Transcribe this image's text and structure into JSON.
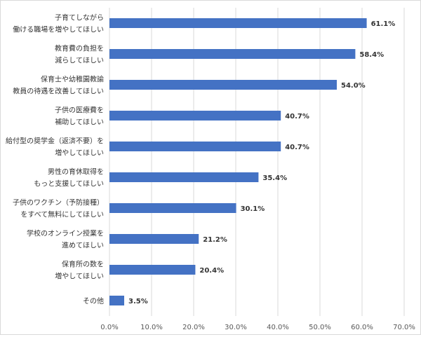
{
  "chart_data": {
    "type": "bar",
    "orientation": "horizontal",
    "categories": [
      [
        "子育てしながら",
        "働ける職場を増やしてほしい"
      ],
      [
        "教育費の負担を",
        "減らしてほしい"
      ],
      [
        "保育士や幼稚園教諭",
        "教員の待遇を改善してほしい"
      ],
      [
        "子供の医療費を",
        "補助してほしい"
      ],
      [
        "給付型の奨学金（返済不要）を",
        "増やしてほしい"
      ],
      [
        "男性の育休取得を",
        "もっと支援してほしい"
      ],
      [
        "子供のワクチン（予防接種）",
        "をすべて無料にしてほしい"
      ],
      [
        "学校のオンライン授業を",
        "進めてほしい"
      ],
      [
        "保育所の数を",
        "増やしてほしい"
      ],
      [
        "その他"
      ]
    ],
    "values": [
      61.1,
      58.4,
      54.0,
      40.7,
      40.7,
      35.4,
      30.1,
      21.2,
      20.4,
      3.5
    ],
    "value_labels": [
      "61.1%",
      "58.4%",
      "54.0%",
      "40.7%",
      "40.7%",
      "35.4%",
      "30.1%",
      "21.2%",
      "20.4%",
      "3.5%"
    ],
    "xlim": [
      0,
      70
    ],
    "x_ticks": [
      "0.0%",
      "10.0%",
      "20.0%",
      "30.0%",
      "40.0%",
      "50.0%",
      "60.0%",
      "70.0%"
    ],
    "grid": true,
    "legend": "none",
    "bar_color": "#4472c4",
    "grid_color": "#d9d9d9"
  }
}
